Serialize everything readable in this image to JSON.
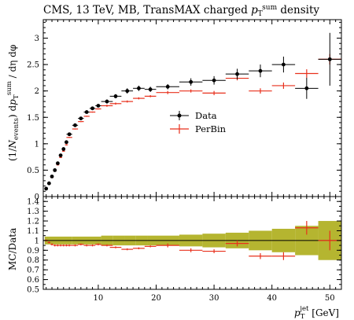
{
  "chart_data": [
    {
      "type": "scatter",
      "panel": "main",
      "title_parts": {
        "prefix": "CMS, 13 TeV, MB, TransMAX charged ",
        "sym": "p",
        "sub": "T",
        "sup": "sum",
        "suffix": " density"
      },
      "ylabel_parts": {
        "a": "(1/",
        "N": "N",
        "Nsub": "events",
        "b": ") d",
        "p": "p",
        "psub": "T",
        "psup": "sum",
        "c": " / dη dφ"
      },
      "xlim": [
        0.5,
        52
      ],
      "ylim": [
        0,
        3.35
      ],
      "yticks": [
        "0",
        "0.5",
        "1",
        "1.5",
        "2",
        "2.5",
        "3"
      ],
      "xticks": [
        "10",
        "20",
        "30",
        "40",
        "50"
      ],
      "xtick_values": [
        10,
        20,
        30,
        40,
        50
      ],
      "ytick_values": [
        0,
        0.5,
        1,
        1.5,
        2,
        2.5,
        3
      ],
      "legend_position": "center-right",
      "series": [
        {
          "name": "Data",
          "color": "#000000",
          "marker": "dot",
          "x": [
            1.0,
            1.5,
            2.0,
            2.5,
            3.0,
            3.5,
            4.0,
            4.5,
            5.0,
            6.0,
            7.0,
            8.0,
            9.0,
            10.0,
            11.5,
            13.0,
            15.0,
            17.0,
            19.0,
            22.0,
            26.0,
            30.0,
            34.0,
            38.0,
            42.0,
            46.0,
            50.0
          ],
          "xerr": [
            0.25,
            0.25,
            0.25,
            0.25,
            0.25,
            0.25,
            0.25,
            0.25,
            0.5,
            0.5,
            0.5,
            0.5,
            0.5,
            0.5,
            1.0,
            1.0,
            1.0,
            1.0,
            1.0,
            2.0,
            2.0,
            2.0,
            2.0,
            2.0,
            2.0,
            2.0,
            2.0
          ],
          "y": [
            0.15,
            0.25,
            0.38,
            0.5,
            0.63,
            0.78,
            0.9,
            1.03,
            1.18,
            1.35,
            1.48,
            1.6,
            1.67,
            1.72,
            1.8,
            1.9,
            2.0,
            2.05,
            2.03,
            2.08,
            2.17,
            2.2,
            2.32,
            2.38,
            2.5,
            2.05,
            2.6
          ],
          "yerr": [
            0.02,
            0.02,
            0.02,
            0.02,
            0.02,
            0.02,
            0.02,
            0.02,
            0.02,
            0.02,
            0.03,
            0.03,
            0.03,
            0.03,
            0.04,
            0.04,
            0.05,
            0.05,
            0.05,
            0.05,
            0.07,
            0.08,
            0.1,
            0.12,
            0.15,
            0.2,
            0.5
          ]
        },
        {
          "name": "PerBin",
          "color": "#e8301c",
          "marker": "none",
          "x": [
            1.0,
            1.5,
            2.0,
            2.5,
            3.0,
            3.5,
            4.0,
            4.5,
            5.0,
            6.0,
            7.0,
            8.0,
            9.0,
            10.0,
            11.5,
            13.0,
            15.0,
            17.0,
            19.0,
            22.0,
            26.0,
            30.0,
            34.0,
            38.0,
            42.0,
            46.0,
            50.0
          ],
          "xerr": [
            0.25,
            0.25,
            0.25,
            0.25,
            0.25,
            0.25,
            0.25,
            0.25,
            0.5,
            0.5,
            0.5,
            0.5,
            0.5,
            0.5,
            1.0,
            1.0,
            1.0,
            1.0,
            1.0,
            2.0,
            2.0,
            2.0,
            2.0,
            2.0,
            2.0,
            2.0,
            2.0
          ],
          "y": [
            0.15,
            0.24,
            0.36,
            0.48,
            0.6,
            0.74,
            0.86,
            0.98,
            1.12,
            1.28,
            1.42,
            1.52,
            1.6,
            1.66,
            1.72,
            1.76,
            1.8,
            1.86,
            1.9,
            1.97,
            2.0,
            1.96,
            2.24,
            2.0,
            2.1,
            2.33,
            2.6
          ],
          "yerr": [
            0.01,
            0.01,
            0.01,
            0.01,
            0.01,
            0.01,
            0.01,
            0.01,
            0.01,
            0.01,
            0.01,
            0.01,
            0.01,
            0.01,
            0.02,
            0.02,
            0.02,
            0.02,
            0.02,
            0.03,
            0.03,
            0.04,
            0.04,
            0.05,
            0.06,
            0.08,
            0.1
          ]
        }
      ]
    },
    {
      "type": "scatter",
      "panel": "ratio",
      "ylabel": "MC/Data",
      "xlabel_parts": {
        "sym": "p",
        "sub": "T",
        "sup": "jet",
        "unit": " [GeV]"
      },
      "xlim": [
        0.5,
        52
      ],
      "ylim": [
        0.5,
        1.45
      ],
      "yticks": [
        "0.5",
        "0.6",
        "0.7",
        "0.8",
        "0.9",
        "1",
        "1.1",
        "1.2",
        "1.3",
        "1.4"
      ],
      "ytick_values": [
        0.5,
        0.6,
        0.7,
        0.8,
        0.9,
        1.0,
        1.1,
        1.2,
        1.3,
        1.4
      ],
      "band": {
        "color": "#b5b530",
        "x_edges": [
          0.75,
          5.5,
          10.5,
          12.5,
          14.5,
          16.5,
          18.5,
          20,
          24,
          28,
          32,
          36,
          40,
          44,
          48,
          52
        ],
        "half_width": [
          0.04,
          0.04,
          0.05,
          0.05,
          0.05,
          0.05,
          0.05,
          0.05,
          0.06,
          0.07,
          0.08,
          0.1,
          0.12,
          0.15,
          0.2
        ]
      },
      "series": [
        {
          "name": "PerBin",
          "color": "#e8301c",
          "x": [
            1.0,
            1.5,
            2.0,
            2.5,
            3.0,
            3.5,
            4.0,
            4.5,
            5.0,
            6.0,
            7.0,
            8.0,
            9.0,
            10.0,
            11.5,
            13.0,
            15.0,
            17.0,
            19.0,
            22.0,
            26.0,
            30.0,
            34.0,
            38.0,
            42.0,
            46.0,
            50.0
          ],
          "xerr": [
            0.25,
            0.25,
            0.25,
            0.25,
            0.25,
            0.25,
            0.25,
            0.25,
            0.5,
            0.5,
            0.5,
            0.5,
            0.5,
            0.5,
            1.0,
            1.0,
            1.0,
            1.0,
            1.0,
            2.0,
            2.0,
            2.0,
            2.0,
            2.0,
            2.0,
            2.0,
            2.0
          ],
          "y": [
            1.0,
            0.98,
            0.96,
            0.95,
            0.95,
            0.95,
            0.95,
            0.95,
            0.95,
            0.95,
            0.96,
            0.95,
            0.95,
            0.96,
            0.95,
            0.93,
            0.91,
            0.92,
            0.94,
            0.95,
            0.9,
            0.89,
            0.97,
            0.84,
            0.84,
            1.13,
            1.0
          ],
          "yerr": [
            0.01,
            0.01,
            0.01,
            0.01,
            0.01,
            0.01,
            0.01,
            0.01,
            0.01,
            0.01,
            0.01,
            0.01,
            0.01,
            0.01,
            0.01,
            0.01,
            0.01,
            0.01,
            0.01,
            0.02,
            0.02,
            0.02,
            0.03,
            0.03,
            0.04,
            0.07,
            0.1
          ]
        }
      ]
    }
  ]
}
